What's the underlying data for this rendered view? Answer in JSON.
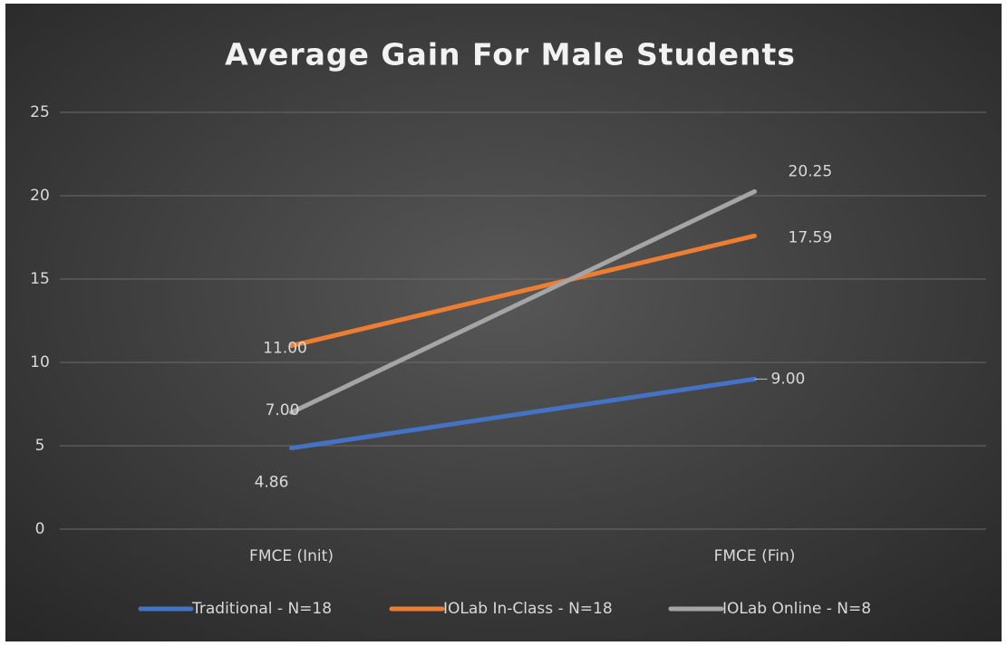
{
  "chart_data": {
    "type": "line",
    "title": "Average Gain For Male Students",
    "categories": [
      "FMCE (Init)",
      "FMCE (Fin)"
    ],
    "series": [
      {
        "name": "Traditional - N=18",
        "color": "#4472c4",
        "values": [
          4.86,
          9.0
        ],
        "value_labels": [
          "4.86",
          "9.00"
        ]
      },
      {
        "name": "IOLab In-Class - N=18",
        "color": "#ed7d31",
        "values": [
          11.0,
          17.59
        ],
        "value_labels": [
          "11.00",
          "17.59"
        ]
      },
      {
        "name": "IOLab Online - N=8",
        "color": "#a5a5a5",
        "values": [
          7.0,
          20.25
        ],
        "value_labels": [
          "7.00",
          "20.25"
        ]
      }
    ],
    "ylim": [
      0,
      25
    ],
    "yticks": [
      0,
      5,
      10,
      15,
      20,
      25
    ],
    "grid": true,
    "legend": "bottom"
  }
}
